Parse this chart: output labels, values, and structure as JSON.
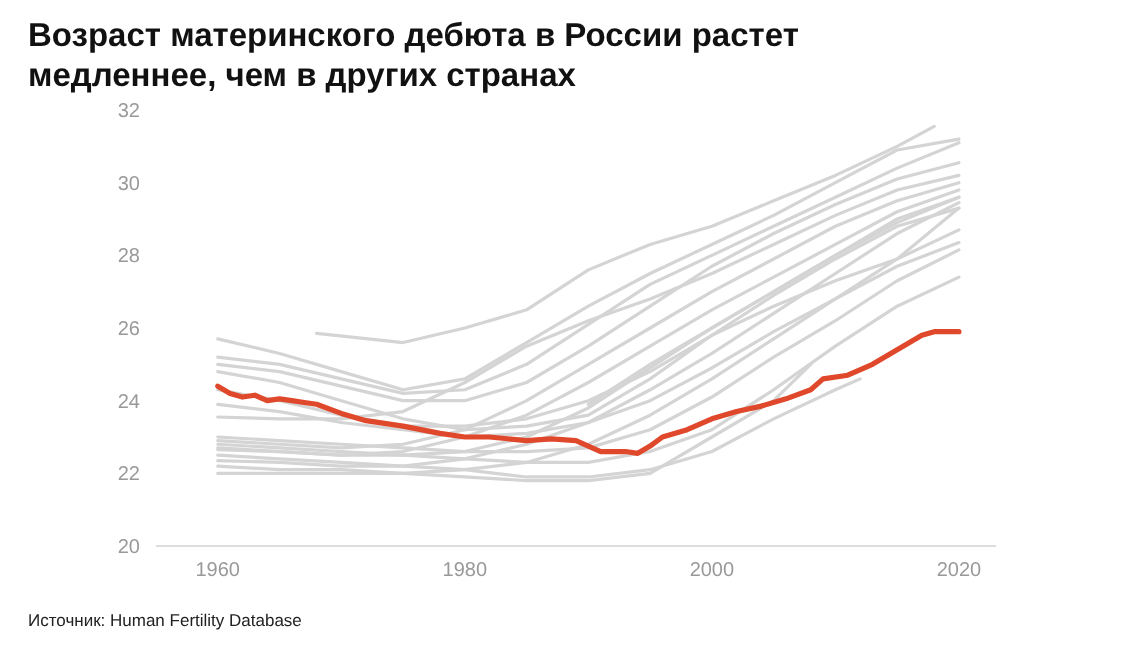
{
  "chart_data": {
    "type": "line",
    "title": "Возраст материнского дебюта в России растет медленнее, чем в других странах",
    "annotations": [
      "Источник: Human Fertility Database"
    ],
    "x": [
      1960,
      1965,
      1970,
      1975,
      1980,
      1985,
      1990,
      1995,
      2000,
      2005,
      2010,
      2015,
      2020
    ],
    "xlim": [
      1955,
      2023
    ],
    "xticks": [
      1960,
      1980,
      2000,
      2020
    ],
    "ylim": [
      20,
      32
    ],
    "yticks": [
      20,
      22,
      24,
      26,
      28,
      30,
      32
    ],
    "grid": false,
    "legend": false,
    "marker": "none",
    "line_style": "solid",
    "series": [
      {
        "color": "#d4d4d4",
        "values": [
          25.7,
          25.3,
          24.8,
          24.3,
          24.6,
          25.6,
          26.6,
          27.5,
          28.3,
          29.1,
          30.0,
          30.9,
          31.2
        ]
      },
      {
        "color": "#d4d4d4",
        "values": [
          25.2,
          25.0,
          24.6,
          24.2,
          24.3,
          25.0,
          26.1,
          27.2,
          28.0,
          28.8,
          29.6,
          30.4,
          31.1
        ]
      },
      {
        "color": "#d4d4d4",
        "values": [
          25.0,
          24.8,
          24.4,
          24.0,
          24.0,
          24.5,
          25.5,
          26.6,
          27.7,
          28.6,
          29.4,
          30.1,
          30.55
        ]
      },
      {
        "color": "#d4d4d4",
        "values": [
          23.55,
          23.5,
          23.5,
          23.7,
          24.5,
          25.5,
          26.2,
          26.8,
          27.5,
          28.3,
          29.1,
          29.8,
          30.2
        ]
      },
      {
        "color": "#d4d4d4",
        "values": [
          22.9,
          22.8,
          22.7,
          22.8,
          23.2,
          24.0,
          25.0,
          26.0,
          27.0,
          27.9,
          28.8,
          29.5,
          30.0
        ]
      },
      {
        "color": "#d4d4d4",
        "values": [
          22.7,
          22.6,
          22.5,
          22.6,
          23.0,
          23.6,
          24.5,
          25.5,
          26.5,
          27.4,
          28.3,
          29.2,
          29.8
        ]
      },
      {
        "color": "#d4d4d4",
        "values": [
          22.65,
          22.6,
          22.5,
          22.5,
          22.6,
          23.0,
          23.8,
          24.9,
          26.0,
          27.0,
          28.0,
          28.9,
          29.6
        ]
      },
      {
        "color": "#d4d4d4",
        "values": [
          22.35,
          22.3,
          22.2,
          22.2,
          22.4,
          22.8,
          23.4,
          24.3,
          25.3,
          26.4,
          27.5,
          28.6,
          29.45
        ]
      },
      {
        "color": "#d4d4d4",
        "values": [
          22.0,
          22.0,
          22.0,
          22.0,
          22.1,
          22.3,
          22.8,
          23.6,
          24.6,
          25.7,
          26.8,
          27.9,
          29.3
        ]
      },
      {
        "color": "#d4d4d4",
        "x": [
          1968,
          1975,
          1980,
          1985,
          1990,
          1995,
          2000,
          2005,
          2010,
          2015,
          2018
        ],
        "values": [
          25.85,
          25.6,
          26.0,
          26.5,
          27.6,
          28.3,
          28.8,
          29.5,
          30.2,
          31.0,
          31.55
        ]
      },
      {
        "color": "#d4d4d4",
        "values": [
          24.3,
          24.0,
          23.6,
          23.3,
          23.3,
          23.5,
          24.0,
          24.8,
          25.8,
          26.6,
          27.3,
          27.9,
          28.7
        ]
      },
      {
        "color": "#d4d4d4",
        "values": [
          23.9,
          23.7,
          23.4,
          23.2,
          23.0,
          23.1,
          23.4,
          24.0,
          24.9,
          25.9,
          26.8,
          27.7,
          28.35
        ]
      },
      {
        "color": "#d4d4d4",
        "values": [
          23.0,
          22.9,
          22.8,
          22.7,
          22.6,
          22.6,
          22.7,
          23.2,
          24.1,
          25.2,
          26.2,
          27.3,
          28.15
        ]
      },
      {
        "color": "#d4d4d4",
        "values": [
          22.8,
          22.7,
          22.6,
          22.5,
          22.4,
          22.3,
          22.3,
          22.6,
          23.2,
          24.3,
          25.5,
          26.6,
          27.4
        ]
      },
      {
        "color": "#d4d4d4",
        "x": [
          1960,
          1965,
          1970,
          1975,
          1980,
          1985,
          1990,
          1995,
          2000,
          2005,
          2010,
          2012
        ],
        "values": [
          22.5,
          22.4,
          22.3,
          22.2,
          22.1,
          21.9,
          21.9,
          22.1,
          22.6,
          23.5,
          24.3,
          24.6
        ]
      },
      {
        "color": "#d4d4d4",
        "x": [
          1960,
          1965,
          1970,
          1975,
          1980,
          1985,
          1990,
          1995,
          2000,
          2005,
          2008
        ],
        "values": [
          22.2,
          22.1,
          22.1,
          22.0,
          21.9,
          21.8,
          21.8,
          22.0,
          23.0,
          24.0,
          25.0
        ]
      },
      {
        "color": "#d4d4d4",
        "x": [
          1990,
          1995,
          2000,
          2005,
          2010,
          2015,
          2020
        ],
        "values": [
          23.9,
          25.0,
          26.0,
          27.0,
          28.0,
          29.0,
          29.6
        ]
      },
      {
        "color": "#d4d4d4",
        "values": [
          24.8,
          24.5,
          24.0,
          23.5,
          23.2,
          23.3,
          23.6,
          24.6,
          25.8,
          26.9,
          27.9,
          28.8,
          29.3
        ]
      },
      {
        "color": "#e0482b",
        "x": [
          1960,
          1961,
          1962,
          1963,
          1964,
          1965,
          1966,
          1967,
          1968,
          1970,
          1972,
          1975,
          1978,
          1980,
          1982,
          1985,
          1987,
          1989,
          1990,
          1991,
          1993,
          1994,
          1995,
          1996,
          1998,
          2000,
          2002,
          2004,
          2006,
          2008,
          2009,
          2011,
          2013,
          2015,
          2017,
          2018,
          2020
        ],
        "values": [
          24.4,
          24.2,
          24.1,
          24.15,
          24.0,
          24.05,
          24.0,
          23.95,
          23.9,
          23.65,
          23.45,
          23.3,
          23.1,
          23.0,
          23.0,
          22.9,
          22.95,
          22.9,
          22.75,
          22.6,
          22.6,
          22.55,
          22.75,
          23.0,
          23.2,
          23.5,
          23.7,
          23.85,
          24.05,
          24.3,
          24.6,
          24.7,
          25.0,
          25.4,
          25.8,
          25.9,
          25.9
        ]
      }
    ]
  }
}
